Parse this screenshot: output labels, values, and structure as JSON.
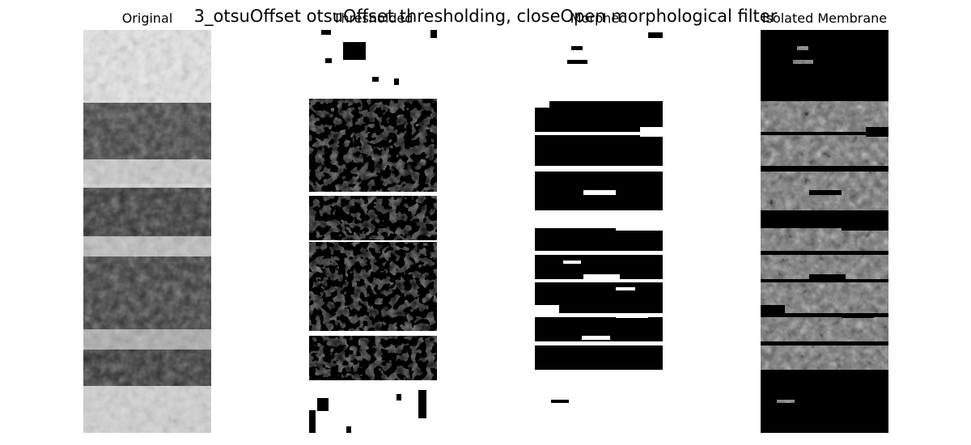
{
  "figure": {
    "title": "3_otsuOffset otsuOffset thresholding, closeOpen morphological filter",
    "panels": [
      {
        "title": "Original",
        "kind": "grayscale-original"
      },
      {
        "title": "Thresholded",
        "kind": "binary-threshold"
      },
      {
        "title": "Morphed",
        "kind": "binary-morphed"
      },
      {
        "title": "Isolated Membrane",
        "kind": "masked-grayscale"
      }
    ]
  }
}
